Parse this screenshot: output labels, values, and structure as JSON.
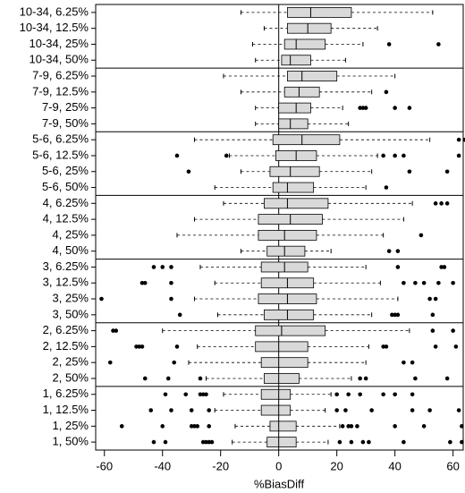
{
  "chart_data": {
    "type": "boxplot",
    "orientation": "horizontal",
    "x_label": "%BiasDiff",
    "categories": [
      "10-34, 6.25%",
      "10-34, 12.5%",
      "10-34, 25%",
      "10-34, 50%",
      "7-9, 6.25%",
      "7-9, 12.5%",
      "7-9, 25%",
      "7-9, 50%",
      "5-6, 6.25%",
      "5-6, 12.5%",
      "5-6, 25%",
      "5-6, 50%",
      "4, 6.25%",
      "4, 12.5%",
      "4, 25%",
      "4, 50%",
      "3, 6.25%",
      "3, 12.5%",
      "3, 25%",
      "3, 50%",
      "2, 6.25%",
      "2, 12.5%",
      "2, 25%",
      "2, 50%",
      "1, 6.25%",
      "1, 12.5%",
      "1, 25%",
      "1, 50%"
    ],
    "boxes": [
      {
        "whisker_low": -13,
        "q1": 3,
        "median": 11,
        "q3": 25,
        "whisker_high": 53,
        "outliers": []
      },
      {
        "whisker_low": -5,
        "q1": 3,
        "median": 10,
        "q3": 18,
        "whisker_high": 34,
        "outliers": []
      },
      {
        "whisker_low": -9,
        "q1": 2,
        "median": 6,
        "q3": 16,
        "whisker_high": 29,
        "outliers": [
          38,
          55
        ]
      },
      {
        "whisker_low": -8,
        "q1": 1,
        "median": 4,
        "q3": 11,
        "whisker_high": 23,
        "outliers": []
      },
      {
        "whisker_low": -19,
        "q1": 3,
        "median": 8,
        "q3": 20,
        "whisker_high": 40,
        "outliers": []
      },
      {
        "whisker_low": -13,
        "q1": 2,
        "median": 7,
        "q3": 14,
        "whisker_high": 32,
        "outliers": [
          37
        ]
      },
      {
        "whisker_low": -8,
        "q1": 0,
        "median": 6,
        "q3": 11,
        "whisker_high": 22,
        "outliers": [
          28,
          29,
          30,
          40,
          45
        ]
      },
      {
        "whisker_low": -8,
        "q1": 0,
        "median": 4,
        "q3": 10,
        "whisker_high": 24,
        "outliers": []
      },
      {
        "whisker_low": -29,
        "q1": -2,
        "median": 8,
        "q3": 21,
        "whisker_high": 52,
        "outliers": [
          62,
          64
        ]
      },
      {
        "whisker_low": -17,
        "q1": -1,
        "median": 6,
        "q3": 13,
        "whisker_high": 34,
        "outliers": [
          -35,
          -18,
          36,
          40,
          43,
          62
        ]
      },
      {
        "whisker_low": -13,
        "q1": -3,
        "median": 4,
        "q3": 14,
        "whisker_high": 32,
        "outliers": [
          -31,
          45,
          58
        ]
      },
      {
        "whisker_low": -22,
        "q1": -2,
        "median": 3,
        "q3": 12,
        "whisker_high": 30,
        "outliers": [
          37
        ]
      },
      {
        "whisker_low": -19,
        "q1": -5,
        "median": 3,
        "q3": 17,
        "whisker_high": 46,
        "outliers": [
          54,
          56,
          58
        ]
      },
      {
        "whisker_low": -29,
        "q1": -7,
        "median": 4,
        "q3": 15,
        "whisker_high": 43,
        "outliers": []
      },
      {
        "whisker_low": -35,
        "q1": -7,
        "median": 2,
        "q3": 13,
        "whisker_high": 36,
        "outliers": [
          49
        ]
      },
      {
        "whisker_low": -13,
        "q1": -4,
        "median": 2,
        "q3": 9,
        "whisker_high": 18,
        "outliers": [
          38,
          41
        ]
      },
      {
        "whisker_low": -27,
        "q1": -6,
        "median": 2,
        "q3": 10,
        "whisker_high": 30,
        "outliers": [
          -43,
          -40,
          -37,
          41,
          56,
          57
        ]
      },
      {
        "whisker_low": -22,
        "q1": -6,
        "median": 3,
        "q3": 12,
        "whisker_high": 35,
        "outliers": [
          -47,
          -46,
          -37,
          43,
          47,
          50,
          55,
          60
        ]
      },
      {
        "whisker_low": -29,
        "q1": -7,
        "median": 3,
        "q3": 13,
        "whisker_high": 41,
        "outliers": [
          -61,
          -37,
          52,
          54
        ]
      },
      {
        "whisker_low": -21,
        "q1": -5,
        "median": 3,
        "q3": 12,
        "whisker_high": 32,
        "outliers": [
          -34,
          39,
          40,
          41,
          53
        ]
      },
      {
        "whisker_low": -40,
        "q1": -8,
        "median": 1,
        "q3": 16,
        "whisker_high": 45,
        "outliers": [
          -57,
          -56,
          53,
          60
        ]
      },
      {
        "whisker_low": -28,
        "q1": -8,
        "median": 0,
        "q3": 10,
        "whisker_high": 31,
        "outliers": [
          -49,
          -48,
          -47,
          -35,
          36,
          37,
          54,
          61
        ]
      },
      {
        "whisker_low": -31,
        "q1": -6,
        "median": 0,
        "q3": 10,
        "whisker_high": 30,
        "outliers": [
          -58,
          -36,
          43,
          46
        ]
      },
      {
        "whisker_low": -25,
        "q1": -5,
        "median": 0,
        "q3": 7,
        "whisker_high": 25,
        "outliers": [
          -46,
          -38,
          -27,
          28,
          30,
          47,
          58
        ]
      },
      {
        "whisker_low": -19,
        "q1": -6,
        "median": 0,
        "q3": 4,
        "whisker_high": 18,
        "outliers": [
          -39,
          -32,
          -27,
          -26,
          -25,
          20,
          24,
          28,
          36,
          40,
          46
        ]
      },
      {
        "whisker_low": -22,
        "q1": -6,
        "median": 0,
        "q3": 4,
        "whisker_high": 16,
        "outliers": [
          -44,
          -37,
          -30,
          -24,
          20,
          23,
          32,
          46,
          52,
          62
        ]
      },
      {
        "whisker_low": -15,
        "q1": -3,
        "median": 0,
        "q3": 6,
        "whisker_high": 21,
        "outliers": [
          -54,
          -40,
          -30,
          -29,
          -28,
          -24,
          22,
          24,
          25,
          27,
          40,
          50,
          63
        ]
      },
      {
        "whisker_low": -16,
        "q1": -4,
        "median": 0,
        "q3": 6,
        "whisker_high": 17,
        "outliers": [
          -43,
          -39,
          -26,
          -25,
          -24,
          -23,
          21,
          25,
          29,
          31,
          43,
          59,
          63
        ]
      }
    ],
    "box_color": "#d9d9d9",
    "reference_line": 0,
    "xlim": [
      -63,
      63.5
    ],
    "xticks": [
      -60,
      -40,
      -20,
      0,
      20,
      40,
      60
    ]
  }
}
